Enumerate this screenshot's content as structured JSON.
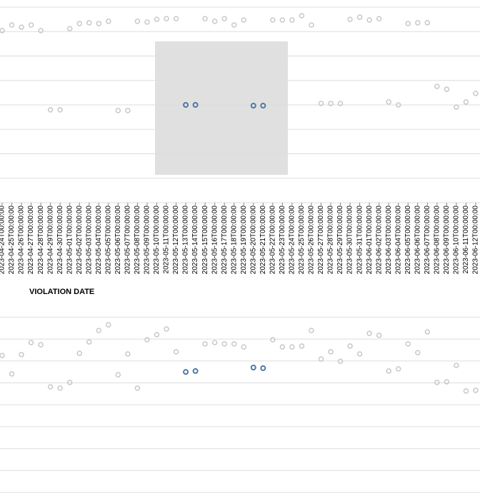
{
  "chart_data": {
    "type": "scatter",
    "x_label": "VIOLATION DATE",
    "x": [
      "2023-04-24T00:00:00",
      "2023-04-25T00:00:00",
      "2023-04-26T00:00:00",
      "2023-04-27T00:00:00",
      "2023-04-28T00:00:00",
      "2023-04-29T00:00:00",
      "2023-04-30T00:00:00",
      "2023-05-01T00:00:00",
      "2023-05-02T00:00:00",
      "2023-05-03T00:00:00",
      "2023-05-04T00:00:00",
      "2023-05-05T00:00:00",
      "2023-05-06T00:00:00",
      "2023-05-07T00:00:00",
      "2023-05-08T00:00:00",
      "2023-05-09T00:00:00",
      "2023-05-10T00:00:00",
      "2023-05-11T00:00:00",
      "2023-05-12T00:00:00",
      "2023-05-13T00:00:00",
      "2023-05-14T00:00:00",
      "2023-05-15T00:00:00",
      "2023-05-16T00:00:00",
      "2023-05-17T00:00:00",
      "2023-05-18T00:00:00",
      "2023-05-19T00:00:00",
      "2023-05-20T00:00:00",
      "2023-05-21T00:00:00",
      "2023-05-22T00:00:00",
      "2023-05-23T00:00:00",
      "2023-05-24T00:00:00",
      "2023-05-25T00:00:00",
      "2023-05-26T00:00:00",
      "2023-05-27T00:00:00",
      "2023-05-28T00:00:00",
      "2023-05-29T00:00:00",
      "2023-05-30T00:00:00",
      "2023-05-31T00:00:00",
      "2023-06-01T00:00:00",
      "2023-06-02T00:00:00",
      "2023-06-03T00:00:00",
      "2023-06-04T00:00:00",
      "2023-06-05T00:00:00",
      "2023-06-06T00:00:00",
      "2023-06-07T00:00:00",
      "2023-06-08T00:00:00",
      "2023-06-09T00:00:00",
      "2023-06-10T00:00:00",
      "2023-06-11T00:00:00",
      "2023-06-12T00:00:00"
    ],
    "color": "#c8c8c8",
    "highlight": {
      "color": "#4c78a8",
      "indices": [
        19,
        20,
        26,
        27
      ]
    },
    "grid": true,
    "panels": [
      {
        "ylim": [
          0,
          8
        ],
        "yticks": [
          0,
          1,
          2,
          3,
          4,
          5,
          6,
          7,
          8
        ],
        "values": [
          7.04,
          7.27,
          7.18,
          7.27,
          7.04,
          3.8,
          3.8,
          7.12,
          7.33,
          7.36,
          7.33,
          7.42,
          3.77,
          3.77,
          7.42,
          7.39,
          7.5,
          7.53,
          7.53,
          4.0,
          4.0,
          7.53,
          7.42,
          7.53,
          7.27,
          7.47,
          3.97,
          3.97,
          7.47,
          7.47,
          7.47,
          7.65,
          7.27,
          4.06,
          4.06,
          4.06,
          7.5,
          7.59,
          7.47,
          7.53,
          4.12,
          4.0,
          7.33,
          7.36,
          7.36,
          4.76,
          4.64,
          3.91,
          4.12,
          4.47
        ]
      },
      {
        "ylim": [
          0,
          8
        ],
        "yticks": [
          0,
          1,
          2,
          3,
          4,
          5,
          6,
          7,
          8
        ],
        "values": [
          6.25,
          5.41,
          6.29,
          6.84,
          6.74,
          4.82,
          4.76,
          5.02,
          6.35,
          6.87,
          7.39,
          7.65,
          5.37,
          6.32,
          4.76,
          6.97,
          7.2,
          7.46,
          6.42,
          5.5,
          5.54,
          6.78,
          6.84,
          6.78,
          6.78,
          6.64,
          5.7,
          5.67,
          6.97,
          6.64,
          6.64,
          6.68,
          7.39,
          6.09,
          6.42,
          5.99,
          6.68,
          6.32,
          7.26,
          7.17,
          5.54,
          5.64,
          6.78,
          6.38,
          7.33,
          5.02,
          5.05,
          5.8,
          4.63,
          4.66
        ]
      }
    ]
  }
}
